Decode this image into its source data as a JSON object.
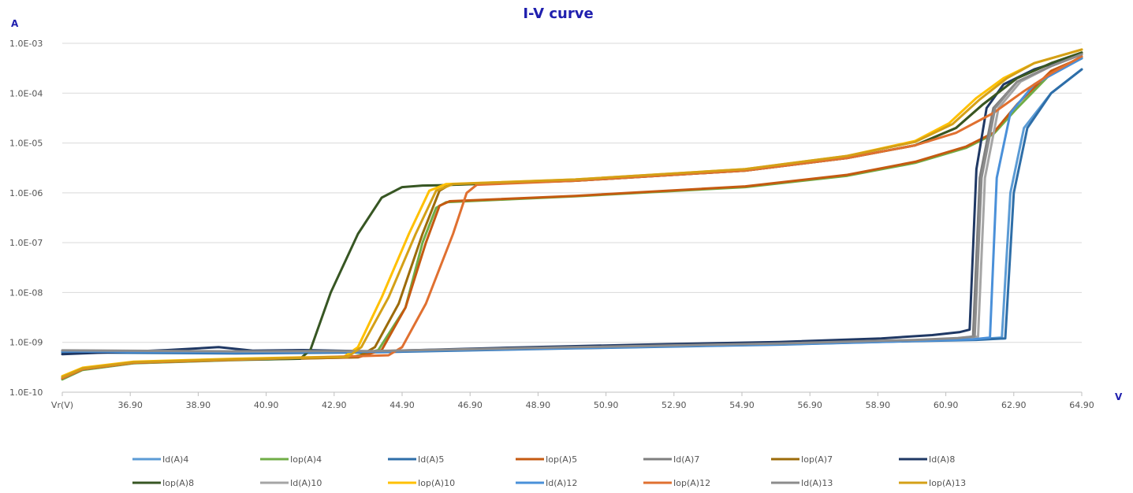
{
  "chart_data": {
    "type": "line",
    "title": "I-V curve",
    "ylabel": "A",
    "xlabel": "V",
    "y_scale": "log",
    "ylim": [
      1e-10,
      0.001
    ],
    "xlim": [
      34.9,
      64.9
    ],
    "grid": true,
    "legend_placement": "bottom",
    "y_ticks": [
      {
        "value": 1e-10,
        "label": "1.0E-10"
      },
      {
        "value": 1e-09,
        "label": "1.0E-09"
      },
      {
        "value": 1e-08,
        "label": "1.0E-08"
      },
      {
        "value": 1e-07,
        "label": "1.0E-07"
      },
      {
        "value": 1e-06,
        "label": "1.0E-06"
      },
      {
        "value": 1e-05,
        "label": "1.0E-05"
      },
      {
        "value": 0.0001,
        "label": "1.0E-04"
      },
      {
        "value": 0.001,
        "label": "1.0E-03"
      }
    ],
    "x_ticks": [
      {
        "value": 34.9,
        "label": "Vr(V)"
      },
      {
        "value": 36.9,
        "label": "36.90"
      },
      {
        "value": 38.9,
        "label": "38.90"
      },
      {
        "value": 40.9,
        "label": "40.90"
      },
      {
        "value": 42.9,
        "label": "42.90"
      },
      {
        "value": 44.9,
        "label": "44.90"
      },
      {
        "value": 46.9,
        "label": "46.90"
      },
      {
        "value": 48.9,
        "label": "48.90"
      },
      {
        "value": 50.9,
        "label": "50.90"
      },
      {
        "value": 52.9,
        "label": "52.90"
      },
      {
        "value": 54.9,
        "label": "54.90"
      },
      {
        "value": 56.9,
        "label": "56.90"
      },
      {
        "value": 58.9,
        "label": "58.90"
      },
      {
        "value": 60.9,
        "label": "60.90"
      },
      {
        "value": 62.9,
        "label": "62.90"
      },
      {
        "value": 64.9,
        "label": "64.90"
      }
    ],
    "series": [
      {
        "name": "Id(A)4",
        "color": "#5b9bd5",
        "x": [
          34.9,
          40,
          44,
          50,
          56,
          60,
          61.8,
          62.55,
          62.8,
          63.2,
          64,
          64.9
        ],
        "y": [
          6.5e-10,
          6.2e-10,
          6.5e-10,
          7.8e-10,
          9.2e-10,
          1.08e-09,
          1.15e-09,
          1.25e-09,
          1e-06,
          2e-05,
          0.0001,
          0.0003
        ]
      },
      {
        "name": "Iop(A)4",
        "color": "#70ad47",
        "x": [
          34.9,
          35.5,
          37,
          40,
          43.4,
          44.2,
          45,
          45.5,
          45.9,
          46.2,
          50,
          55,
          58,
          60,
          61.5,
          62.3,
          63,
          64,
          64.9
        ],
        "y": [
          1.8e-10,
          2.8e-10,
          3.8e-10,
          4.4e-10,
          5e-10,
          7e-10,
          5e-09,
          1e-07,
          5e-07,
          6.5e-07,
          8.5e-07,
          1.3e-06,
          2.2e-06,
          4e-06,
          8e-06,
          1.5e-05,
          5e-05,
          0.00025,
          0.0005
        ]
      },
      {
        "name": "Id(A)5",
        "color": "#2e6ea8",
        "x": [
          34.9,
          40,
          44,
          50,
          56,
          60,
          61.8,
          62.65,
          62.9,
          63.3,
          64,
          64.9
        ],
        "y": [
          6.3e-10,
          6e-10,
          6.3e-10,
          7.6e-10,
          9e-10,
          1.06e-09,
          1.12e-09,
          1.2e-09,
          1e-06,
          2e-05,
          0.0001,
          0.0003
        ]
      },
      {
        "name": "Iop(A)5",
        "color": "#c55a11",
        "x": [
          34.9,
          35.5,
          37,
          40,
          43.6,
          44.3,
          45,
          45.6,
          46,
          46.3,
          50,
          55,
          58,
          60,
          61.5,
          62.3,
          63,
          64,
          64.9
        ],
        "y": [
          1.9e-10,
          2.9e-10,
          3.9e-10,
          4.5e-10,
          5e-10,
          7e-10,
          5e-09,
          1e-07,
          5.5e-07,
          6.8e-07,
          8.7e-07,
          1.35e-06,
          2.3e-06,
          4.2e-06,
          8.5e-06,
          1.6e-05,
          6e-05,
          0.00028,
          0.00052
        ]
      },
      {
        "name": "Id(A)7",
        "color": "#7f7f7f",
        "x": [
          34.9,
          40,
          44,
          50,
          56,
          60,
          61.2,
          61.7,
          61.9,
          62.3,
          63,
          64,
          64.9
        ],
        "y": [
          6.8e-10,
          6.5e-10,
          6.6e-10,
          7.8e-10,
          9.4e-10,
          1.1e-09,
          1.2e-09,
          1.3e-09,
          2e-06,
          5e-05,
          0.00017,
          0.00035,
          0.0006
        ]
      },
      {
        "name": "Iop(A)7",
        "color": "#9c6b0a",
        "x": [
          34.9,
          35.5,
          37,
          40,
          43.6,
          44.1,
          44.8,
          45.5,
          46,
          46.3,
          50,
          55,
          58,
          60,
          61.2,
          62,
          63,
          64,
          64.9
        ],
        "y": [
          2e-10,
          3e-10,
          4e-10,
          4.6e-10,
          5.1e-10,
          8e-10,
          6e-09,
          1.5e-07,
          1.1e-06,
          1.45e-06,
          1.75e-06,
          2.8e-06,
          5e-06,
          9e-06,
          2e-05,
          6e-05,
          0.0002,
          0.0004,
          0.00065
        ]
      },
      {
        "name": "Id(A)8",
        "color": "#1f3864",
        "x": [
          34.9,
          36,
          38,
          39.5,
          40.5,
          42,
          44,
          48,
          52,
          56,
          59,
          60.5,
          61.3,
          61.6,
          61.8,
          62.1,
          62.6,
          63.5,
          64.9
        ],
        "y": [
          5.8e-10,
          6.2e-10,
          7e-10,
          8e-10,
          6.8e-10,
          7e-10,
          6.6e-10,
          7.8e-10,
          9e-10,
          1.02e-09,
          1.2e-09,
          1.4e-09,
          1.6e-09,
          1.8e-09,
          3e-06,
          5e-05,
          0.00015,
          0.0003,
          0.0006
        ]
      },
      {
        "name": "Iop(A)8",
        "color": "#375623",
        "x": [
          34.9,
          35.5,
          37,
          40,
          41.9,
          42.2,
          42.8,
          43.6,
          44.3,
          44.9,
          45.5,
          46,
          50,
          55,
          58,
          60,
          61.2,
          62,
          63,
          64,
          64.9
        ],
        "y": [
          1.9e-10,
          2.9e-10,
          3.9e-10,
          4.5e-10,
          4.7e-10,
          7e-10,
          1e-08,
          1.5e-07,
          8e-07,
          1.3e-06,
          1.4e-06,
          1.42e-06,
          1.75e-06,
          2.8e-06,
          5e-06,
          9e-06,
          2e-05,
          6e-05,
          0.0002,
          0.0004,
          0.00065
        ]
      },
      {
        "name": "Id(A)10",
        "color": "#a5a5a5",
        "x": [
          34.9,
          40,
          44,
          50,
          56,
          60,
          61.3,
          61.85,
          62.05,
          62.45,
          63.1,
          64,
          64.9
        ],
        "y": [
          6.7e-10,
          6.4e-10,
          6.6e-10,
          7.9e-10,
          9.3e-10,
          1.1e-09,
          1.2e-09,
          1.3e-09,
          2e-06,
          5e-05,
          0.00017,
          0.00035,
          0.0006
        ]
      },
      {
        "name": "Iop(A)10",
        "color": "#ffc000",
        "x": [
          34.9,
          35.5,
          37,
          40,
          43.2,
          43.6,
          44.3,
          45.1,
          45.7,
          46.2,
          50,
          55,
          58,
          60,
          61,
          61.8,
          62.6,
          63.5,
          64.9
        ],
        "y": [
          2.1e-10,
          3.1e-10,
          4.1e-10,
          4.7e-10,
          5.2e-10,
          8e-10,
          8e-09,
          1.5e-07,
          1.1e-06,
          1.5e-06,
          1.85e-06,
          3e-06,
          5.5e-06,
          1.1e-05,
          2.5e-05,
          8e-05,
          0.0002,
          0.0004,
          0.00075
        ]
      },
      {
        "name": "Id(A)12",
        "color": "#4a90d9",
        "x": [
          34.9,
          40,
          44,
          50,
          56,
          60,
          61.7,
          62.2,
          62.4,
          62.8,
          63.5,
          64.9
        ],
        "y": [
          6.6e-10,
          6.3e-10,
          6.5e-10,
          7.7e-10,
          9.1e-10,
          1.07e-09,
          1.15e-09,
          1.25e-09,
          2e-06,
          4e-05,
          0.00015,
          0.0005
        ]
      },
      {
        "name": "Iop(A)12",
        "color": "#e07030",
        "x": [
          34.9,
          35.5,
          37,
          40,
          44.5,
          44.9,
          45.6,
          46.4,
          46.8,
          47.1,
          50,
          55,
          58,
          60,
          61.2,
          62.3,
          63.2,
          64,
          64.9
        ],
        "y": [
          1.9e-10,
          2.9e-10,
          3.9e-10,
          4.5e-10,
          5.5e-10,
          8e-10,
          6e-09,
          1.5e-07,
          1e-06,
          1.45e-06,
          1.75e-06,
          2.8e-06,
          5e-06,
          9e-06,
          1.6e-05,
          4e-05,
          0.00011,
          0.00025,
          0.00055
        ]
      },
      {
        "name": "Id(A)13",
        "color": "#8c8c8c",
        "x": [
          34.9,
          40,
          44,
          50,
          56,
          60,
          61.25,
          61.75,
          61.95,
          62.35,
          63,
          64,
          64.9
        ],
        "y": [
          6.9e-10,
          6.6e-10,
          6.7e-10,
          8e-10,
          9.5e-10,
          1.12e-09,
          1.22e-09,
          1.32e-09,
          2e-06,
          5e-05,
          0.00017,
          0.00035,
          0.0006
        ]
      },
      {
        "name": "Iop(A)13",
        "color": "#d4a017",
        "x": [
          34.9,
          35.5,
          37,
          40,
          43.3,
          43.7,
          44.5,
          45.3,
          45.9,
          46.4,
          50,
          55,
          58,
          60,
          61.1,
          61.9,
          62.7,
          63.5,
          64.9
        ],
        "y": [
          2e-10,
          3e-10,
          4e-10,
          4.6e-10,
          5.1e-10,
          8e-10,
          8e-09,
          1.5e-07,
          1.1e-06,
          1.5e-06,
          1.85e-06,
          3e-06,
          5.5e-06,
          1.05e-05,
          2.4e-05,
          7.5e-05,
          0.0002,
          0.0004,
          0.00075
        ]
      }
    ]
  }
}
